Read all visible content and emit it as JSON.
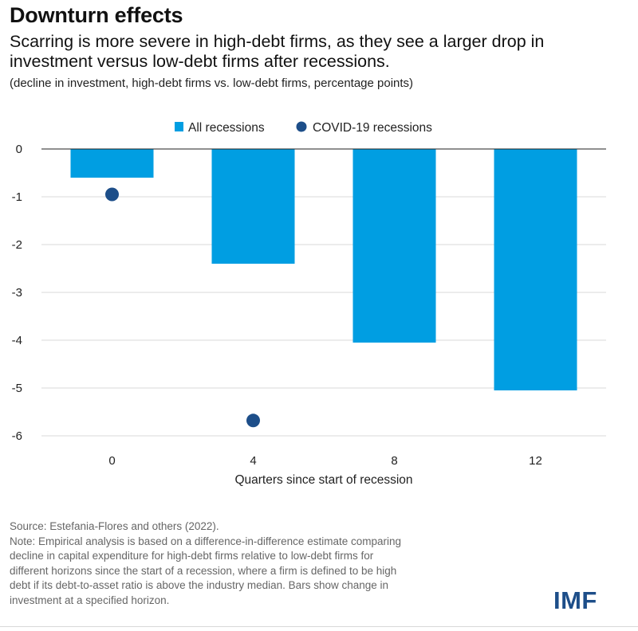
{
  "header": {
    "title": "Downturn effects",
    "subtitle": "Scarring is more severe in high-debt firms, as they see a larger drop in investment versus low-debt firms after recessions.",
    "units": "(decline in investment, high-debt firms vs. low-debt firms, percentage points)"
  },
  "chart_data": {
    "type": "bar",
    "title": "Downturn effects",
    "xlabel": "Quarters since start of recession",
    "ylabel": "",
    "categories": [
      "0",
      "4",
      "8",
      "12"
    ],
    "ylim": [
      -6.4,
      0
    ],
    "yticks": [
      0,
      -1,
      -2,
      -3,
      -4,
      -5,
      -6
    ],
    "grid": true,
    "legend_position": "top",
    "series": [
      {
        "name": "All recessions",
        "kind": "bar",
        "color": "#009ee2",
        "values": [
          -0.6,
          -2.4,
          -4.05,
          -5.05
        ]
      },
      {
        "name": "COVID-19 recessions",
        "kind": "dot",
        "color": "#1d4e89",
        "values": [
          -0.95,
          -5.68,
          null,
          null
        ]
      }
    ]
  },
  "footer": {
    "source": "Source: Estefania-Flores and others (2022).",
    "note_lines": [
      "Note: Empirical analysis is based on a difference-in-difference estimate comparing",
      "decline in capital expenditure for high-debt firms relative to low-debt firms for",
      "different horizons since the start of a recession, where a firm is defined to be high",
      "debt if its debt-to-asset ratio is above the industry median. Bars show change in",
      "investment at a specified horizon."
    ]
  },
  "brand": {
    "logo_text": "IMF",
    "logo_color": "#1d4e89"
  }
}
